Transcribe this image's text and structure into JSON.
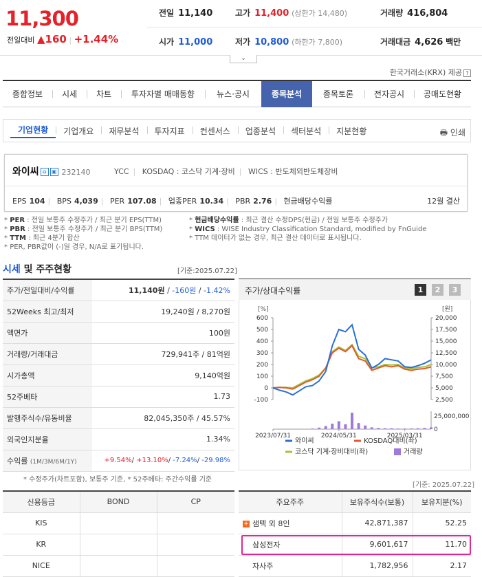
{
  "price": {
    "current": "11,300",
    "change_label": "전일대비",
    "change_arrow": "▲",
    "change": "160",
    "change_pct": "+1.44%"
  },
  "quote": {
    "prev_label": "전일",
    "prev": "11,140",
    "high_label": "고가",
    "high": "11,400",
    "upper_limit": "(상한가 14,480)",
    "volume_label": "거래량",
    "volume": "416,804",
    "open_label": "시가",
    "open": "11,000",
    "low_label": "저가",
    "low": "10,800",
    "lower_limit": "(하한가 7,800)",
    "amount_label": "거래대금",
    "amount": "4,626",
    "amount_unit": "백만"
  },
  "provider": "한국거래소(KRX) 제공",
  "main_tabs": [
    "종합정보",
    "시세",
    "차트",
    "투자자별 매매동향",
    "뉴스·공시",
    "종목분석",
    "종목토론",
    "전자공시",
    "공매도현황"
  ],
  "active_main_tab": "종목분석",
  "sub_tabs": [
    "기업현황",
    "기업개요",
    "재무분석",
    "투자지표",
    "컨센서스",
    "업종분석",
    "섹터분석",
    "지분현황"
  ],
  "print_label": "인쇄",
  "company": {
    "name": "와이씨",
    "code": "232140",
    "eng": "YCC",
    "market": "KOSDAQ : 코스닥 기계·장비",
    "wics": "WICS : 반도체외반도체장비",
    "metrics": [
      {
        "k": "EPS",
        "v": "104"
      },
      {
        "k": "BPS",
        "v": "4,039"
      },
      {
        "k": "PER",
        "v": "107.08"
      },
      {
        "k": "업종PER",
        "v": "10.34"
      },
      {
        "k": "PBR",
        "v": "2.76"
      },
      {
        "k": "현금배당수익률",
        "v": ""
      }
    ],
    "fiscal": "12월 결산"
  },
  "notes_left": [
    {
      "k": "PER",
      "t": ": 전일 보통주 수정주가 / 최근 분기 EPS(TTM)"
    },
    {
      "k": "PBR",
      "t": ": 전일 보통주 수정주가 / 최근 분기 BPS(TTM)"
    },
    {
      "k": "TTM",
      "t": ": 최근 4분기 합산"
    },
    {
      "k": "",
      "t": "PER, PBR값이 (-)일 경우, N/A로 표기됩니다."
    }
  ],
  "notes_right": [
    {
      "k": "현금배당수익률",
      "t": ": 최근 결산 수정DPS(현금) / 전일 보통주 수정주가"
    },
    {
      "k": "WICS",
      "t": ": WISE Industry Classification Standard, modified by FnGuide"
    },
    {
      "k": "",
      "t": "TTM 데이터가 없는 경우, 최근 결산 데이터로 표시됩니다."
    }
  ],
  "section1": {
    "title_a": "시세",
    "title_b": "및 주주현황",
    "date": "[기준:2025.07.22]",
    "rows": [
      {
        "k": "주가/전일대비/수익률",
        "v1": "11,140원",
        "v2": "-160원",
        "v3": "-1.42%"
      },
      {
        "k": "52Weeks 최고/최저",
        "v": "19,240원 / 8,270원"
      },
      {
        "k": "액면가",
        "v": "100원"
      },
      {
        "k": "거래량/거래대금",
        "v": "729,941주 / 81억원"
      },
      {
        "k": "시가총액",
        "v": "9,140억원"
      },
      {
        "k": "52주베타",
        "v": "1.73"
      },
      {
        "k": "발행주식수/유동비율",
        "v": "82,045,350주 / 45.57%"
      },
      {
        "k": "외국인지분율",
        "v": "1.34%"
      },
      {
        "k": "수익률",
        "k2": "(1M/3M/6M/1Y)",
        "r1": "+9.54%",
        "r2": "+13.10%",
        "r3": "-7.24%",
        "r4": "-29.98%"
      }
    ],
    "note": "* 수정주가(차트포함), 보통주 기준, * 52주베타: 주간수익률 기준"
  },
  "chart_panel": {
    "title": "주가/상대수익률",
    "buttons": [
      "1",
      "2",
      "3"
    ],
    "active_button": "1"
  },
  "chart_data": {
    "type": "line",
    "left_axis_unit": "[%]",
    "right_axis_unit": "[원]",
    "left_ticks": [
      "600",
      "500",
      "400",
      "300",
      "200",
      "100",
      "0",
      "-100"
    ],
    "right_ticks": [
      "20,000",
      "17,500",
      "15,000",
      "12,500",
      "10,000",
      "7,500",
      "5,000",
      "2,500"
    ],
    "left_range": [
      -100,
      600
    ],
    "volume_ticks": [
      "25,000,000",
      "0"
    ],
    "volume_range": [
      0,
      25000000
    ],
    "x_ticks": [
      "2023/07/31",
      "2024/05/31",
      "2025/03/31"
    ],
    "x": [
      "2023/07",
      "2023/08",
      "2023/09",
      "2023/10",
      "2023/11",
      "2023/12",
      "2024/01",
      "2024/02",
      "2024/03",
      "2024/04",
      "2024/05",
      "2024/06",
      "2024/07",
      "2024/08",
      "2024/09",
      "2024/10",
      "2024/11",
      "2024/12",
      "2025/01",
      "2025/02",
      "2025/03",
      "2025/04",
      "2025/05",
      "2025/06",
      "2025/07"
    ],
    "series": [
      {
        "name": "와이씨",
        "color": "#2a6fd6",
        "values": [
          0,
          -20,
          -35,
          -60,
          -25,
          10,
          20,
          60,
          140,
          360,
          500,
          480,
          540,
          330,
          280,
          170,
          200,
          250,
          240,
          230,
          180,
          175,
          190,
          210,
          240
        ]
      },
      {
        "name": "KOSDAQ대비(좌)",
        "color": "#e05a2a",
        "values": [
          0,
          5,
          0,
          -10,
          20,
          50,
          70,
          100,
          170,
          300,
          340,
          310,
          360,
          250,
          230,
          150,
          170,
          190,
          180,
          190,
          160,
          150,
          160,
          165,
          180
        ]
      },
      {
        "name": "코스닥 기계·장비대비(좌)",
        "color": "#a5c33a",
        "values": [
          0,
          5,
          5,
          0,
          30,
          60,
          80,
          110,
          170,
          310,
          350,
          320,
          370,
          270,
          250,
          170,
          180,
          200,
          195,
          200,
          170,
          165,
          175,
          180,
          200
        ]
      }
    ],
    "volume": {
      "name": "거래량",
      "color": "#a07ad9",
      "values": [
        0,
        0,
        0,
        0,
        0,
        0,
        1000000,
        2500000,
        5000000,
        9000000,
        13000000,
        8000000,
        27000000,
        10000000,
        6000000,
        3000000,
        2000000,
        1500000,
        1500000,
        1000000,
        1000000,
        1200000,
        1500000,
        2000000,
        3000000
      ]
    }
  },
  "section2": {
    "date": "[기준: 2025.07.22]",
    "credit_headers": [
      "신용등급",
      "BOND",
      "CP"
    ],
    "credit_rows": [
      [
        "KIS",
        "",
        ""
      ],
      [
        "KR",
        "",
        ""
      ],
      [
        "NICE",
        "",
        ""
      ]
    ],
    "holder_headers": [
      "주요주주",
      "보유주식수(보통)",
      "보유지분(%)"
    ],
    "holder_rows": [
      {
        "name": "샘텍 외 8인",
        "shares": "42,871,387",
        "pct": "52.25",
        "expand": "+"
      },
      {
        "name": "삼성전자",
        "shares": "9,601,617",
        "pct": "11.70"
      },
      {
        "name": "자사주",
        "shares": "1,782,956",
        "pct": "2.17"
      }
    ]
  }
}
